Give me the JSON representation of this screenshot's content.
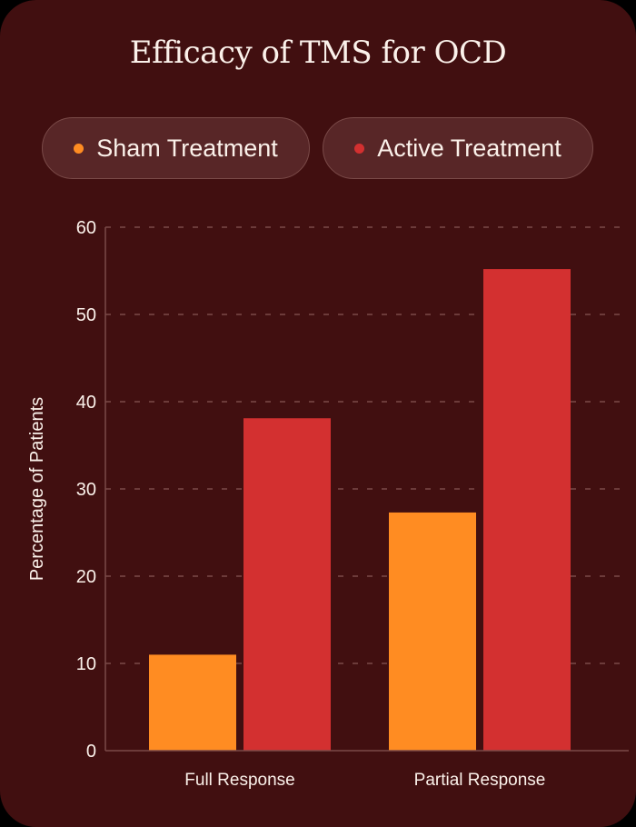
{
  "title": "Efficacy of TMS for OCD",
  "legend": [
    {
      "label": "Sham Treatment",
      "color": "#ff8c22"
    },
    {
      "label": "Active Treatment",
      "color": "#d33030"
    }
  ],
  "colors": {
    "background": "#410f10",
    "pill_background": "#582627",
    "pill_border": "#7a4a48",
    "grid": "#7a4a48",
    "text": "#fbf1ea",
    "sham": "#ff8c22",
    "active": "#d33030"
  },
  "chart_data": {
    "type": "bar",
    "title": "Efficacy of TMS for OCD",
    "xlabel": "",
    "ylabel": "Percentage of Patients",
    "categories": [
      "Full Response",
      "Partial Response"
    ],
    "series": [
      {
        "name": "Sham Treatment",
        "values": [
          11,
          27.3
        ]
      },
      {
        "name": "Active Treatment",
        "values": [
          38.1,
          55.2
        ]
      }
    ],
    "ylim": [
      0,
      60
    ],
    "yticks": [
      0,
      10,
      20,
      30,
      40,
      50,
      60
    ],
    "grid": "horizontal dashed",
    "legend_position": "top"
  }
}
